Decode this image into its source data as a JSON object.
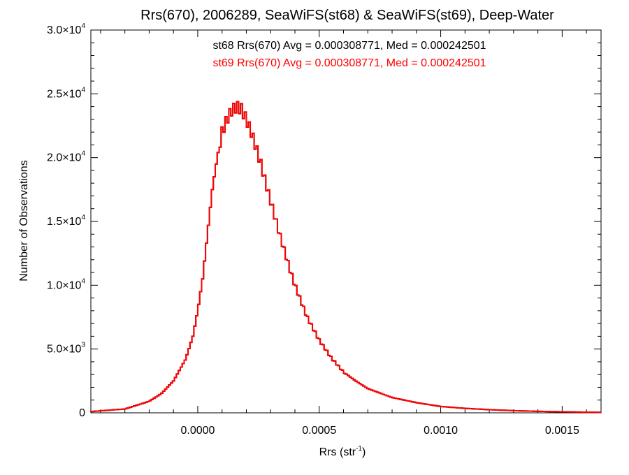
{
  "chart_data": {
    "type": "line",
    "style": "step-histogram",
    "title": "Rrs(670), 2006289, SeaWiFS(st68) & SeaWiFS(st69), Deep-Water",
    "xlabel_base": "Rrs (str",
    "xlabel_sup": "-1",
    "xlabel_close": ")",
    "ylabel": "Number of Observations",
    "xlim": [
      -0.00044,
      0.00166
    ],
    "ylim": [
      0,
      30000
    ],
    "x_ticks": [
      {
        "value": 0.0,
        "label": "0.0000"
      },
      {
        "value": 0.0005,
        "label": "0.0005"
      },
      {
        "value": 0.001,
        "label": "0.0010"
      },
      {
        "value": 0.0015,
        "label": "0.0015"
      }
    ],
    "y_ticks": [
      {
        "value": 0,
        "mant": "0",
        "exp": ""
      },
      {
        "value": 5000,
        "mant": "5.0×10",
        "exp": "3"
      },
      {
        "value": 10000,
        "mant": "1.0×10",
        "exp": "4"
      },
      {
        "value": 15000,
        "mant": "1.5×10",
        "exp": "4"
      },
      {
        "value": 20000,
        "mant": "2.0×10",
        "exp": "4"
      },
      {
        "value": 25000,
        "mant": "2.5×10",
        "exp": "4"
      },
      {
        "value": 30000,
        "mant": "3.0×10",
        "exp": "4"
      }
    ],
    "annotations": [
      {
        "text": "st68 Rrs(670) Avg = 0.000308771, Med = 0.000242501",
        "color": "#000000"
      },
      {
        "text": "st69 Rrs(670) Avg = 0.000308771, Med = 0.000242501",
        "color": "#ff0000"
      }
    ],
    "grid": false,
    "series": [
      {
        "name": "st68",
        "color": "#000000"
      },
      {
        "name": "st69",
        "color": "#ff0000"
      }
    ],
    "curve_points": [
      [
        -0.00044,
        100
      ],
      [
        -0.0003,
        300
      ],
      [
        -0.0002,
        900
      ],
      [
        -0.00015,
        1500
      ],
      [
        -0.0001,
        2500
      ],
      [
        -5e-05,
        4200
      ],
      [
        -2e-05,
        6000
      ],
      [
        0.0,
        8000
      ],
      [
        2e-05,
        10500
      ],
      [
        4e-05,
        14000
      ],
      [
        6e-05,
        17500
      ],
      [
        8e-05,
        20000
      ],
      [
        0.0001,
        22000
      ],
      [
        0.00012,
        23000
      ],
      [
        0.00014,
        23700
      ],
      [
        0.00016,
        24000
      ],
      [
        0.00018,
        23800
      ],
      [
        0.0002,
        23000
      ],
      [
        0.00022,
        22000
      ],
      [
        0.00024,
        20800
      ],
      [
        0.00026,
        19500
      ],
      [
        0.00028,
        18000
      ],
      [
        0.0003,
        16600
      ],
      [
        0.00032,
        15200
      ],
      [
        0.00034,
        13800
      ],
      [
        0.00036,
        12500
      ],
      [
        0.00038,
        11200
      ],
      [
        0.0004,
        10000
      ],
      [
        0.00045,
        7500
      ],
      [
        0.0005,
        5700
      ],
      [
        0.00055,
        4300
      ],
      [
        0.0006,
        3200
      ],
      [
        0.00065,
        2500
      ],
      [
        0.0007,
        1900
      ],
      [
        0.0008,
        1200
      ],
      [
        0.0009,
        800
      ],
      [
        0.001,
        500
      ],
      [
        0.0011,
        350
      ],
      [
        0.0012,
        250
      ],
      [
        0.0013,
        170
      ],
      [
        0.0014,
        120
      ],
      [
        0.0015,
        80
      ],
      [
        0.0016,
        50
      ],
      [
        0.00166,
        40
      ]
    ]
  }
}
